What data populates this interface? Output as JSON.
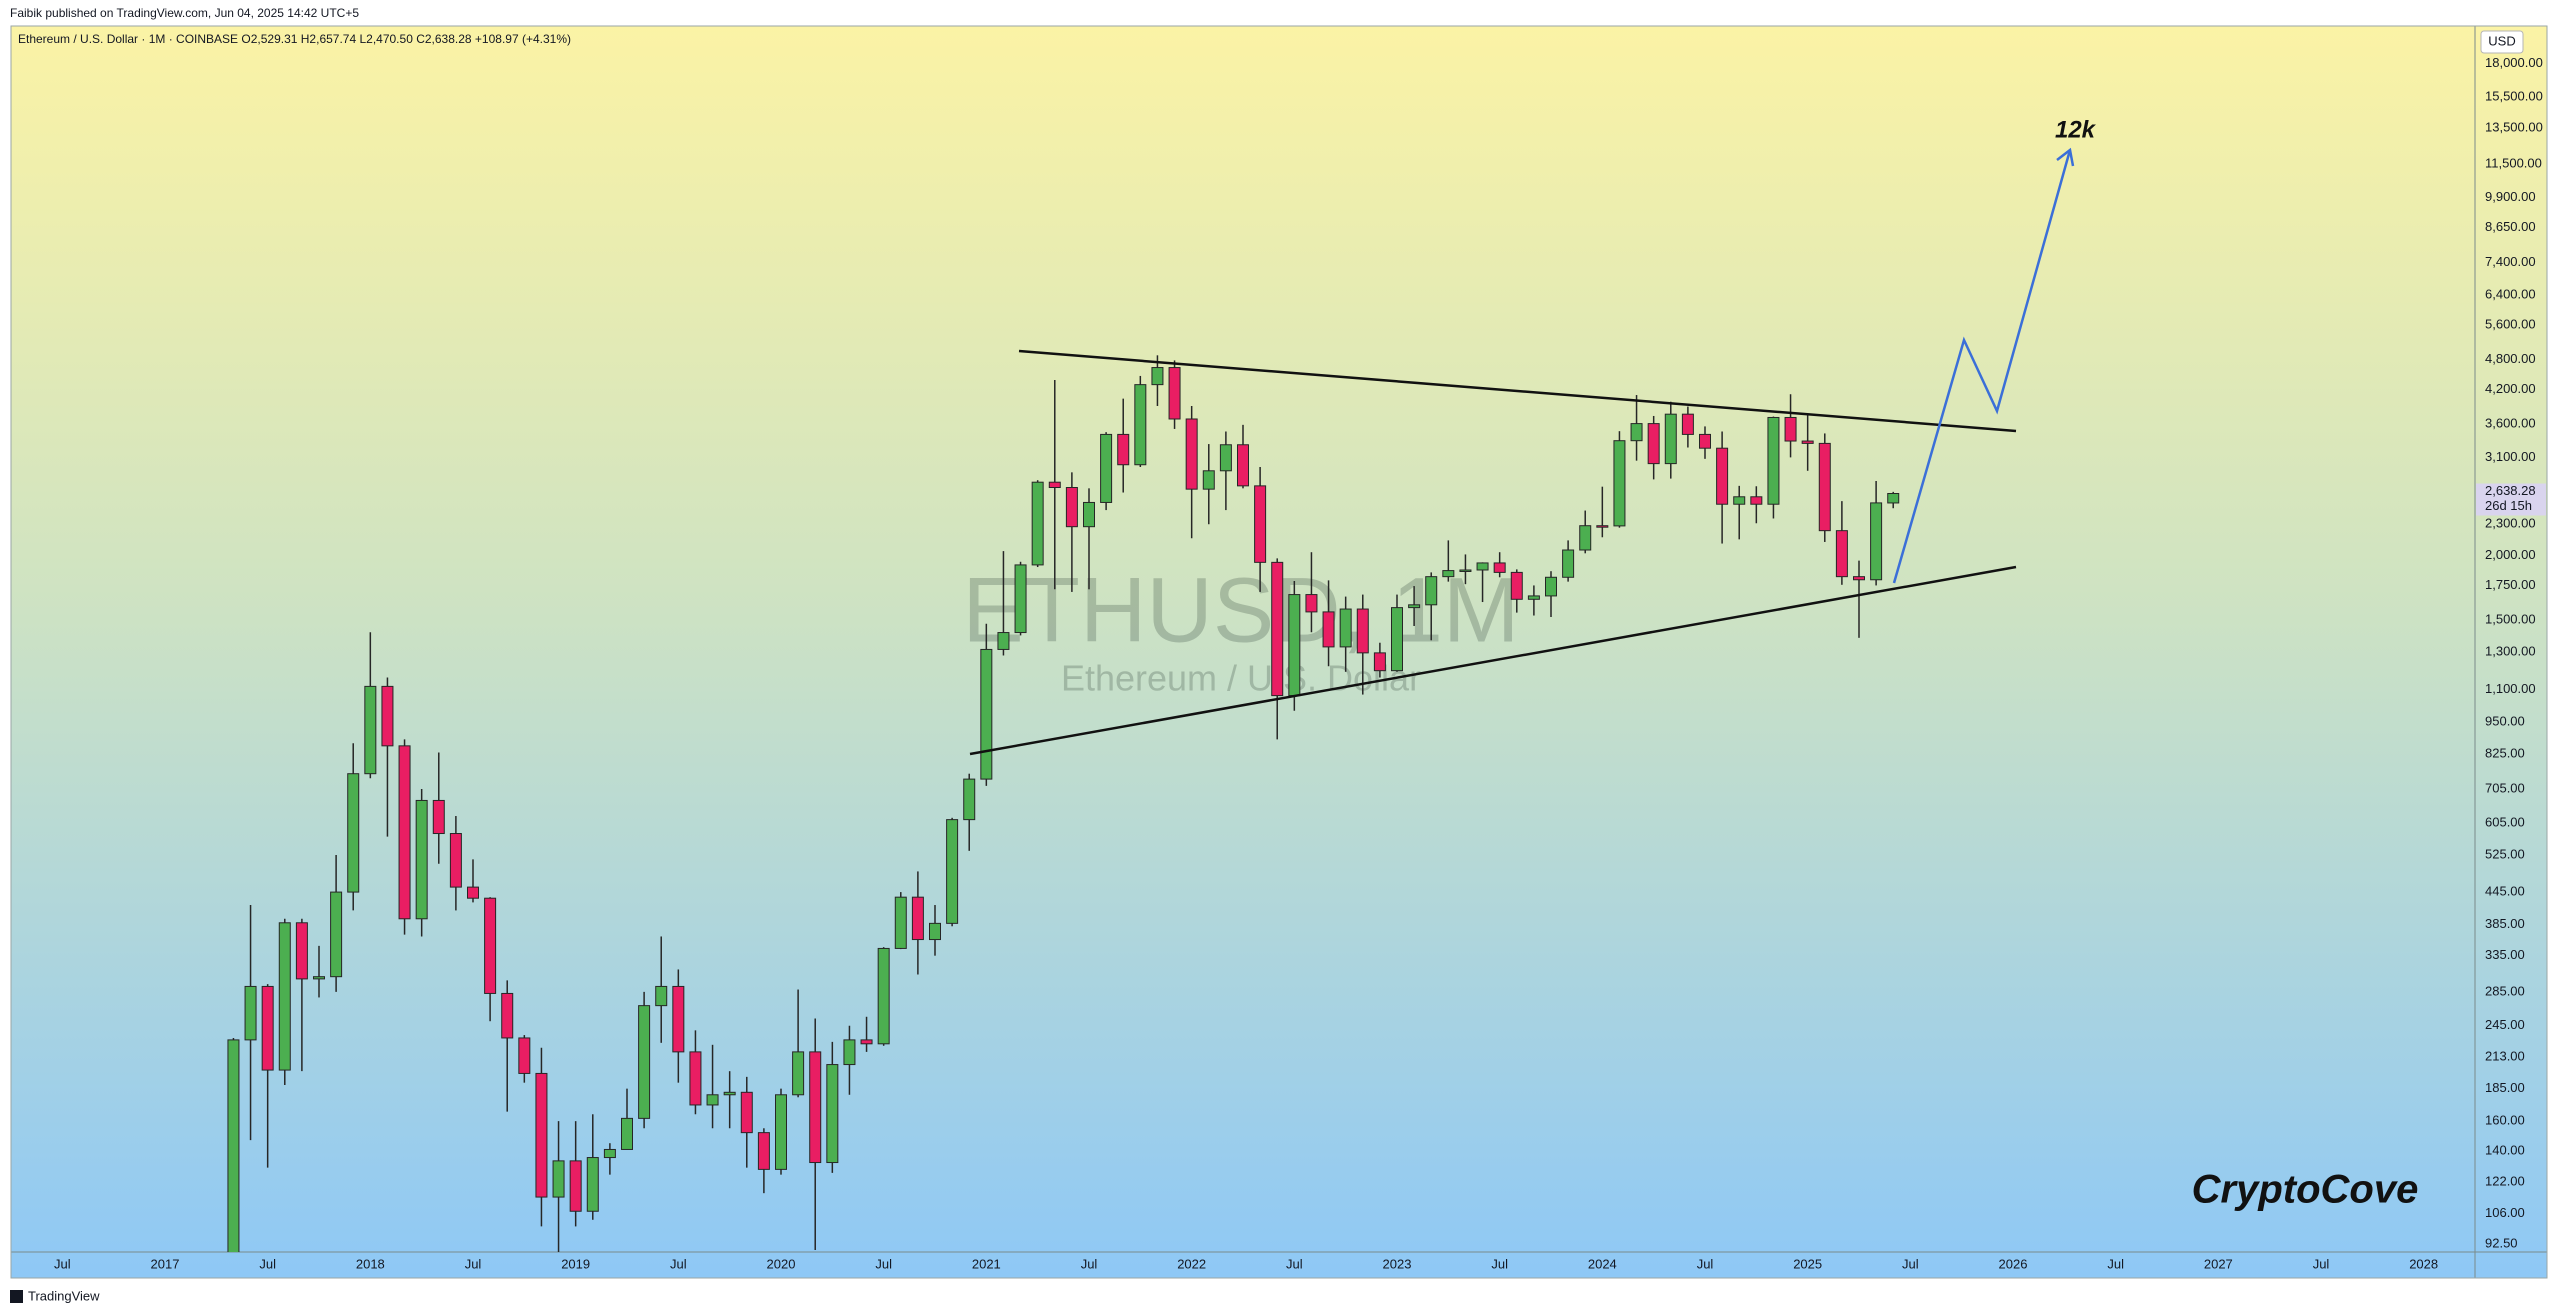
{
  "published": "Faibik published on TradingView.com, Jun 04, 2025 14:42 UTC+5",
  "brand": "TradingView",
  "chart_data": {
    "type": "candlestick",
    "legend_text": "Ethereum / U.S. Dollar · 1M · COINBASE  O2,529.31  H2,657.74  L2,470.50  C2,638.28  +108.97 (+4.31%)",
    "watermark": "ETHUSD, 1M",
    "watermark_subtitle": "Ethereum / U.S. Dollar",
    "currency": "USD",
    "last_price_label": "2,638.28",
    "countdown": "26d 15h",
    "annotations": [
      "12k",
      "CryptoCove"
    ],
    "log_scale": true,
    "grid": false,
    "up_color": "#4caf50",
    "down_color": "#e91e63",
    "wick_color": "#262626",
    "x": [
      "2017-05",
      "2017-06",
      "2017-07",
      "2017-08",
      "2017-09",
      "2017-10",
      "2017-11",
      "2017-12",
      "2018-01",
      "2018-02",
      "2018-03",
      "2018-04",
      "2018-05",
      "2018-06",
      "2018-07",
      "2018-08",
      "2018-09",
      "2018-10",
      "2018-11",
      "2018-12",
      "2019-01",
      "2019-02",
      "2019-03",
      "2019-04",
      "2019-05",
      "2019-06",
      "2019-07",
      "2019-08",
      "2019-09",
      "2019-10",
      "2019-11",
      "2019-12",
      "2020-01",
      "2020-02",
      "2020-03",
      "2020-04",
      "2020-05",
      "2020-06",
      "2020-07",
      "2020-08",
      "2020-09",
      "2020-10",
      "2020-11",
      "2020-12",
      "2021-01",
      "2021-02",
      "2021-03",
      "2021-04",
      "2021-05",
      "2021-06",
      "2021-07",
      "2021-08",
      "2021-09",
      "2021-10",
      "2021-11",
      "2021-12",
      "2022-01",
      "2022-02",
      "2022-03",
      "2022-04",
      "2022-05",
      "2022-06",
      "2022-07",
      "2022-08",
      "2022-09",
      "2022-10",
      "2022-11",
      "2022-12",
      "2023-01",
      "2023-02",
      "2023-03",
      "2023-04",
      "2023-05",
      "2023-06",
      "2023-07",
      "2023-08",
      "2023-09",
      "2023-10",
      "2023-11",
      "2023-12",
      "2024-01",
      "2024-02",
      "2024-03",
      "2024-04",
      "2024-05",
      "2024-06",
      "2024-07",
      "2024-08",
      "2024-09",
      "2024-10",
      "2024-11",
      "2024-12",
      "2025-01",
      "2025-02",
      "2025-03",
      "2025-04",
      "2025-05",
      "2025-06"
    ],
    "open": [
      87,
      230,
      292,
      201,
      388,
      302,
      305,
      445,
      755,
      1115,
      855,
      395,
      670,
      578,
      455,
      433,
      283,
      232,
      198,
      114,
      134,
      107,
      136,
      141,
      162,
      268,
      292,
      218,
      172,
      180,
      182,
      152,
      129,
      180,
      218,
      133,
      206,
      230,
      226,
      346,
      435,
      360,
      387,
      615,
      737,
      1315,
      1418,
      1918,
      2775,
      2710,
      2275,
      2535,
      3435,
      3000,
      4290,
      4630,
      3680,
      2690,
      2920,
      3280,
      2730,
      1940,
      1070,
      1680,
      1555,
      1330,
      1575,
      1295,
      1196,
      1585,
      1605,
      1820,
      1870,
      1875,
      1935,
      1855,
      1645,
      1670,
      1815,
      2050,
      2285,
      2283,
      3340,
      3605,
      3015,
      3760,
      3435,
      3230,
      2515,
      2600,
      2515,
      3705,
      3335,
      3300,
      2235,
      1820,
      1795,
      2529.31
    ],
    "high": [
      232,
      420,
      295,
      395,
      395,
      350,
      525,
      865,
      1420,
      1160,
      880,
      705,
      830,
      625,
      515,
      435,
      300,
      235,
      222,
      160,
      160,
      165,
      145,
      185,
      285,
      365,
      315,
      240,
      225,
      200,
      195,
      155,
      185,
      288,
      253,
      228,
      245,
      255,
      348,
      445,
      488,
      420,
      620,
      755,
      1475,
      2040,
      1945,
      2800,
      4380,
      2900,
      2700,
      3470,
      4030,
      4460,
      4890,
      4780,
      3900,
      3290,
      3480,
      3585,
      2970,
      1975,
      1785,
      2030,
      1790,
      1665,
      1680,
      1355,
      1680,
      1745,
      1855,
      2140,
      2010,
      1940,
      2030,
      1880,
      1750,
      1865,
      2140,
      2445,
      2720,
      3485,
      4095,
      3730,
      3975,
      3890,
      3560,
      3480,
      2730,
      2725,
      3720,
      4110,
      3745,
      3450,
      2550,
      1955,
      2790,
      2657.74
    ],
    "low": [
      80,
      147,
      130,
      188,
      200,
      278,
      285,
      410,
      740,
      570,
      368,
      365,
      505,
      410,
      425,
      250,
      167,
      190,
      100,
      82,
      100,
      103,
      126,
      141,
      155,
      227,
      190,
      165,
      155,
      155,
      130,
      116,
      126,
      178,
      90,
      127,
      180,
      218,
      224,
      345,
      308,
      335,
      382,
      535,
      715,
      1280,
      1400,
      1900,
      1720,
      1700,
      1720,
      2450,
      2650,
      2970,
      3900,
      3520,
      2160,
      2300,
      2450,
      2700,
      1700,
      880,
      1000,
      1420,
      1220,
      1190,
      1075,
      1160,
      1190,
      1460,
      1370,
      1780,
      1760,
      1625,
      1815,
      1550,
      1530,
      1520,
      1780,
      2020,
      2170,
      2265,
      3055,
      2810,
      2820,
      3240,
      3080,
      2110,
      2150,
      2310,
      2360,
      3100,
      2920,
      2125,
      1755,
      1385,
      1750,
      2470.5
    ],
    "close": [
      230,
      292,
      201,
      388,
      302,
      305,
      445,
      755,
      1115,
      855,
      395,
      670,
      578,
      455,
      433,
      283,
      232,
      198,
      114,
      134,
      107,
      136,
      141,
      162,
      268,
      292,
      218,
      172,
      180,
      182,
      152,
      129,
      180,
      218,
      133,
      206,
      230,
      226,
      346,
      435,
      360,
      387,
      615,
      737,
      1315,
      1418,
      1918,
      2775,
      2710,
      2275,
      2535,
      3435,
      3000,
      4290,
      4630,
      3680,
      2690,
      2920,
      3280,
      2730,
      1940,
      1070,
      1680,
      1555,
      1330,
      1575,
      1295,
      1196,
      1585,
      1605,
      1820,
      1870,
      1875,
      1935,
      1855,
      1645,
      1670,
      1815,
      2050,
      2285,
      2283,
      3340,
      3605,
      3015,
      3760,
      3435,
      3230,
      2515,
      2600,
      2515,
      3705,
      3335,
      3300,
      2235,
      1820,
      1795,
      2530,
      2638.28
    ],
    "xlim": [
      "2016-04",
      "2028-04"
    ],
    "xticks": [
      {
        "value": "2016-07",
        "label": "Jul"
      },
      {
        "value": "2017-01",
        "label": "2017"
      },
      {
        "value": "2017-07",
        "label": "Jul"
      },
      {
        "value": "2018-01",
        "label": "2018"
      },
      {
        "value": "2018-07",
        "label": "Jul"
      },
      {
        "value": "2019-01",
        "label": "2019"
      },
      {
        "value": "2019-07",
        "label": "Jul"
      },
      {
        "value": "2020-01",
        "label": "2020"
      },
      {
        "value": "2020-07",
        "label": "Jul"
      },
      {
        "value": "2021-01",
        "label": "2021"
      },
      {
        "value": "2021-07",
        "label": "Jul"
      },
      {
        "value": "2022-01",
        "label": "2022"
      },
      {
        "value": "2022-07",
        "label": "Jul"
      },
      {
        "value": "2023-01",
        "label": "2023"
      },
      {
        "value": "2023-07",
        "label": "Jul"
      },
      {
        "value": "2024-01",
        "label": "2024"
      },
      {
        "value": "2024-07",
        "label": "Jul"
      },
      {
        "value": "2025-01",
        "label": "2025"
      },
      {
        "value": "2025-07",
        "label": "Jul"
      },
      {
        "value": "2026-01",
        "label": "2026"
      },
      {
        "value": "2026-07",
        "label": "Jul"
      },
      {
        "value": "2027-01",
        "label": "2027"
      },
      {
        "value": "2027-07",
        "label": "Jul"
      },
      {
        "value": "2028-01",
        "label": "2028"
      }
    ],
    "ylim": [
      89.2,
      21280
    ],
    "yticks": [
      {
        "value": 92.5,
        "label": "92.50"
      },
      {
        "value": 106,
        "label": "106.00"
      },
      {
        "value": 122,
        "label": "122.00"
      },
      {
        "value": 140,
        "label": "140.00"
      },
      {
        "value": 160,
        "label": "160.00"
      },
      {
        "value": 185,
        "label": "185.00"
      },
      {
        "value": 213,
        "label": "213.00"
      },
      {
        "value": 245,
        "label": "245.00"
      },
      {
        "value": 285,
        "label": "285.00"
      },
      {
        "value": 335,
        "label": "335.00"
      },
      {
        "value": 385,
        "label": "385.00"
      },
      {
        "value": 445,
        "label": "445.00"
      },
      {
        "value": 525,
        "label": "525.00"
      },
      {
        "value": 605,
        "label": "605.00"
      },
      {
        "value": 705,
        "label": "705.00"
      },
      {
        "value": 825,
        "label": "825.00"
      },
      {
        "value": 950,
        "label": "950.00"
      },
      {
        "value": 1100,
        "label": "1,100.00"
      },
      {
        "value": 1300,
        "label": "1,300.00"
      },
      {
        "value": 1500,
        "label": "1,500.00"
      },
      {
        "value": 1750,
        "label": "1,750.00"
      },
      {
        "value": 2000,
        "label": "2,000.00"
      },
      {
        "value": 2300,
        "label": "2,300.00"
      },
      {
        "value": 3100,
        "label": "3,100.00"
      },
      {
        "value": 3600,
        "label": "3,600.00"
      },
      {
        "value": 4200,
        "label": "4,200.00"
      },
      {
        "value": 4800,
        "label": "4,800.00"
      },
      {
        "value": 5600,
        "label": "5,600.00"
      },
      {
        "value": 6400,
        "label": "6,400.00"
      },
      {
        "value": 7400,
        "label": "7,400.00"
      },
      {
        "value": 8650,
        "label": "8,650.00"
      },
      {
        "value": 9900,
        "label": "9,900.00"
      },
      {
        "value": 11500,
        "label": "11,500.00"
      },
      {
        "value": 13500,
        "label": "13,500.00"
      },
      {
        "value": 15500,
        "label": "15,500.00"
      },
      {
        "value": 18000,
        "label": "18,000.00"
      }
    ]
  }
}
